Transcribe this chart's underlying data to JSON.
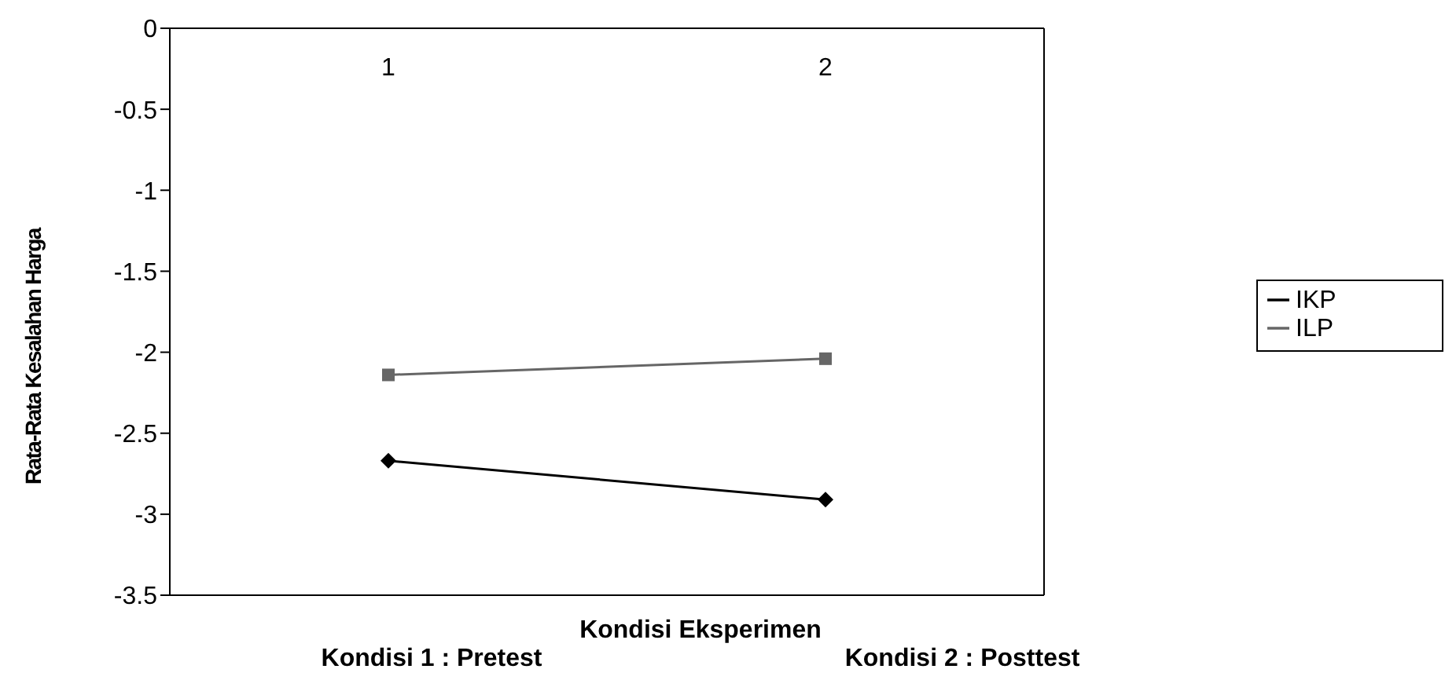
{
  "chart_data": {
    "type": "line",
    "xlabel": "Kondisi Eksperimen",
    "ylabel": "Rata-Rata Kesalahan Harga",
    "categories": [
      "1",
      "2"
    ],
    "series": [
      {
        "name": "IKP",
        "color": "#000000",
        "marker": "diamond",
        "values": [
          -2.67,
          -2.91
        ]
      },
      {
        "name": "ILP",
        "color": "#666666",
        "marker": "square",
        "values": [
          -2.14,
          -2.04
        ]
      }
    ],
    "ylim": [
      -3.5,
      0
    ],
    "yticks": [
      0,
      -0.5,
      -1,
      -1.5,
      -2,
      -2.5,
      -3,
      -3.5
    ],
    "legend": "right",
    "annotations": [
      "Kondisi 1 : Pretest",
      "Kondisi 2 : Posttest"
    ]
  }
}
